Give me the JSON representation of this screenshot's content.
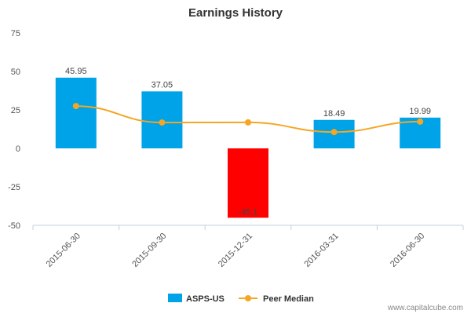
{
  "chart_data": {
    "type": "bar",
    "title": "Earnings History",
    "categories": [
      "2015-06-30",
      "2015-09-30",
      "2015-12-31",
      "2016-03-31",
      "2016-06-30"
    ],
    "series": [
      {
        "name": "ASPS-US",
        "type": "bar",
        "values": [
          45.95,
          37.05,
          -45.1,
          18.49,
          19.99
        ],
        "data_labels": [
          "45.95",
          "37.05",
          "-45.1",
          "18.49",
          "19.99"
        ],
        "color": "#00a2e8",
        "negative_color": "#ff0000"
      },
      {
        "name": "Peer Median",
        "type": "line",
        "values": [
          27.5,
          16.8,
          16.9,
          10.6,
          17.4
        ],
        "color": "#f5a623"
      }
    ],
    "yticks": [
      "75",
      "50",
      "25",
      "0",
      "-25",
      "-50"
    ],
    "ylim": [
      -50,
      75
    ],
    "legend_position": "bottom",
    "grid": false
  },
  "credit": "www.capitalcube.com"
}
